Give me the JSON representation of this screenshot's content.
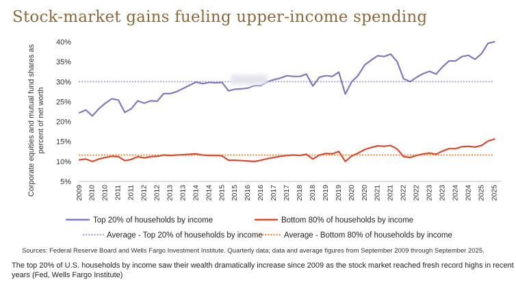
{
  "header": {
    "title": "Stock-market gains fueling upper-income spending"
  },
  "footer": {
    "source": "Sources: Federal Reserve Board and Wells Fargo Investment Institute. Quarterly data; data and average figures from September 2009 through September 2025.",
    "caption": "The top 20% of U.S. households by income saw their wealth dramatically increase since 2009 as the stock market reached fresh record highs in recent years (Fed, Wells Fargo Institute)"
  },
  "chart_data": {
    "type": "line",
    "title": "Stock-market gains fueling upper-income spending",
    "ylabel": "Corporate equities and mutual fund shares as percent of net worth",
    "ylabel_lines": [
      "Corporate equities and mutual fund shares as",
      "percent of net worth"
    ],
    "xlabel": "",
    "ylim": [
      5,
      40
    ],
    "yticks": [
      5,
      10,
      15,
      20,
      25,
      30,
      35,
      40
    ],
    "ytick_labels": [
      "5%",
      "10%",
      "15%",
      "20%",
      "25%",
      "30%",
      "35%",
      "40%"
    ],
    "xlim": [
      2009.5,
      2025.75
    ],
    "xticks": [
      2009.5,
      2010,
      2010.5,
      2011,
      2011.5,
      2012,
      2012.5,
      2013,
      2013.5,
      2014,
      2014.5,
      2015,
      2015.5,
      2016,
      2016.5,
      2017,
      2017.5,
      2018,
      2018.5,
      2019,
      2019.5,
      2020,
      2020.5,
      2021,
      2021.5,
      2022,
      2022.5,
      2023,
      2023.5,
      2024,
      2024.5,
      2025,
      2025.5
    ],
    "xtick_labels": [
      "2009",
      "2010",
      "2010",
      "2011",
      "2011",
      "2012",
      "2012",
      "2013",
      "2013",
      "2014",
      "2014",
      "2015",
      "2015",
      "2016",
      "2016",
      "2017",
      "2017",
      "2018",
      "2018",
      "2019",
      "2019",
      "2020",
      "2020",
      "2021",
      "2021",
      "2022",
      "2022",
      "2023",
      "2023",
      "2024",
      "2024",
      "2025",
      "2025"
    ],
    "legend": {
      "position": "bottom",
      "items": [
        "Top 20% of households by income",
        "Bottom 80% of households by income",
        "Average - Top 20% of households by income",
        "Average - Bottom 80% of households by income"
      ]
    },
    "colors": {
      "top": "#7f78bd",
      "bottom": "#d9492c",
      "top_avg": "#a99ede",
      "bottom_avg": "#ef8a3c",
      "title": "#8a6a3c"
    },
    "series": [
      {
        "name": "Top 20% of households by income",
        "x": [
          2009.5,
          2009.75,
          2010,
          2010.25,
          2010.5,
          2010.75,
          2011,
          2011.25,
          2011.5,
          2011.75,
          2012,
          2012.25,
          2012.5,
          2012.75,
          2013,
          2013.25,
          2013.5,
          2013.75,
          2014,
          2014.25,
          2014.5,
          2014.75,
          2015,
          2015.25,
          2015.5,
          2015.75,
          2016,
          2016.25,
          2016.5,
          2016.75,
          2017,
          2017.25,
          2017.5,
          2017.75,
          2018,
          2018.25,
          2018.5,
          2018.75,
          2019,
          2019.25,
          2019.5,
          2019.75,
          2020,
          2020.25,
          2020.5,
          2020.75,
          2021,
          2021.25,
          2021.5,
          2021.75,
          2022,
          2022.25,
          2022.5,
          2022.75,
          2023,
          2023.25,
          2023.5,
          2023.75,
          2024,
          2024.25,
          2024.5,
          2024.75,
          2025,
          2025.25,
          2025.5
        ],
        "values": [
          22.2,
          22.9,
          21.4,
          23.2,
          24.6,
          25.7,
          25.4,
          22.3,
          23.2,
          25.2,
          24.6,
          25.2,
          25.1,
          27.0,
          27.0,
          27.5,
          28.3,
          29.1,
          29.9,
          29.5,
          29.8,
          29.7,
          29.8,
          27.7,
          28.1,
          28.2,
          28.4,
          29.0,
          29.0,
          30.0,
          30.5,
          30.9,
          31.5,
          31.3,
          31.3,
          31.9,
          28.9,
          31.1,
          31.5,
          31.3,
          32.4,
          26.9,
          30.0,
          31.6,
          34.2,
          35.4,
          36.5,
          36.3,
          36.9,
          35.0,
          30.7,
          30.0,
          31.1,
          32.0,
          32.6,
          31.9,
          33.7,
          35.2,
          35.2,
          36.3,
          36.6,
          35.6,
          37.0,
          39.6,
          40.5
        ]
      },
      {
        "name": "Bottom 80% of households by income",
        "x": [
          2009.5,
          2009.75,
          2010,
          2010.25,
          2010.5,
          2010.75,
          2011,
          2011.25,
          2011.5,
          2011.75,
          2012,
          2012.25,
          2012.5,
          2012.75,
          2013,
          2013.25,
          2013.5,
          2013.75,
          2014,
          2014.25,
          2014.5,
          2014.75,
          2015,
          2015.25,
          2015.5,
          2015.75,
          2016,
          2016.25,
          2016.5,
          2016.75,
          2017,
          2017.25,
          2017.5,
          2017.75,
          2018,
          2018.25,
          2018.5,
          2018.75,
          2019,
          2019.25,
          2019.5,
          2019.75,
          2020,
          2020.25,
          2020.5,
          2020.75,
          2021,
          2021.25,
          2021.5,
          2021.75,
          2022,
          2022.25,
          2022.5,
          2022.75,
          2023,
          2023.25,
          2023.5,
          2023.75,
          2024,
          2024.25,
          2024.5,
          2024.75,
          2025,
          2025.25,
          2025.5
        ],
        "values": [
          10.4,
          10.6,
          10.0,
          10.6,
          11.0,
          11.3,
          11.2,
          10.2,
          10.5,
          11.2,
          10.9,
          11.2,
          11.3,
          11.6,
          11.5,
          11.6,
          11.7,
          11.8,
          11.9,
          11.6,
          11.5,
          11.5,
          11.4,
          10.3,
          10.3,
          10.2,
          10.1,
          10.0,
          10.3,
          10.7,
          11.0,
          11.3,
          11.5,
          11.6,
          11.5,
          11.8,
          10.6,
          11.6,
          12.0,
          11.9,
          12.5,
          10.0,
          11.4,
          12.1,
          13.0,
          13.5,
          13.9,
          13.8,
          14.0,
          13.1,
          11.2,
          11.0,
          11.5,
          11.9,
          12.1,
          11.8,
          12.6,
          13.2,
          13.2,
          13.7,
          13.8,
          13.6,
          14.0,
          15.1,
          15.6
        ]
      },
      {
        "name": "Average - Top 20% of households by income",
        "style": "dotted",
        "x": [
          2009.5,
          2025.5
        ],
        "values": [
          30,
          30
        ]
      },
      {
        "name": "Average - Bottom 80% of households by income",
        "style": "dotted",
        "x": [
          2009.5,
          2025.5
        ],
        "values": [
          11.6,
          11.6
        ]
      }
    ]
  }
}
